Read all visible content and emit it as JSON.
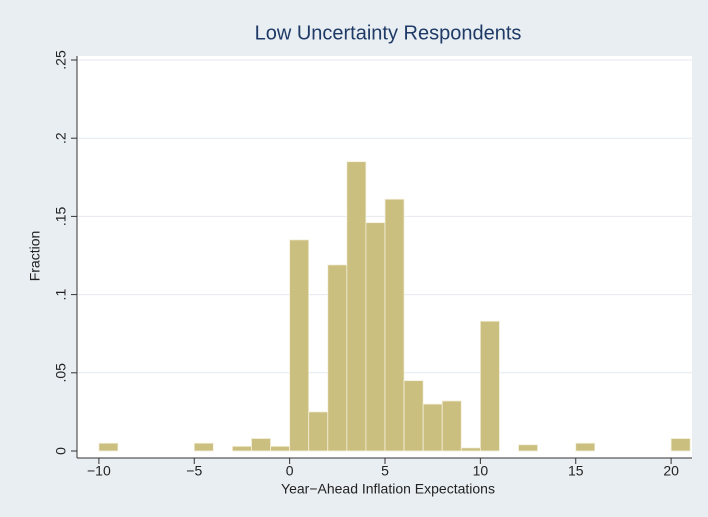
{
  "chart_data": {
    "type": "histogram",
    "title": "Low Uncertainty Respondents",
    "x_label": "Year−Ahead Inflation Expectations",
    "y_label": "Fraction",
    "bins": [
      -10,
      -9,
      -8,
      -7,
      -6,
      -5,
      -4,
      -3,
      -2,
      -1,
      0,
      1,
      2,
      3,
      4,
      5,
      6,
      7,
      8,
      9,
      10,
      11,
      12,
      13,
      14,
      15,
      16,
      17,
      18,
      19,
      20,
      21
    ],
    "values": [
      0.005,
      0,
      0,
      0,
      0,
      0.005,
      0,
      0.003,
      0.008,
      0.003,
      0.135,
      0.025,
      0.119,
      0.185,
      0.146,
      0.161,
      0.045,
      0.03,
      0.032,
      0.002,
      0.083,
      0,
      0.004,
      0,
      0,
      0.005,
      0,
      0,
      0,
      0,
      0.008
    ],
    "color": "#cbbf80",
    "xlim": [
      -11.2,
      21.2
    ],
    "ylim": [
      0,
      0.25
    ],
    "xticks": [
      {
        "value": -10,
        "label": "−10"
      },
      {
        "value": -5,
        "label": "−5"
      },
      0,
      5,
      10,
      15,
      20
    ],
    "yticks": [
      0,
      {
        "value": 0.05,
        "label": ".05"
      },
      {
        "value": 0.1,
        "label": ".1"
      },
      {
        "value": 0.15,
        "label": ".15"
      },
      {
        "value": 0.2,
        "label": ".2"
      },
      {
        "value": 0.25,
        "label": ".25"
      }
    ],
    "grid": true
  }
}
